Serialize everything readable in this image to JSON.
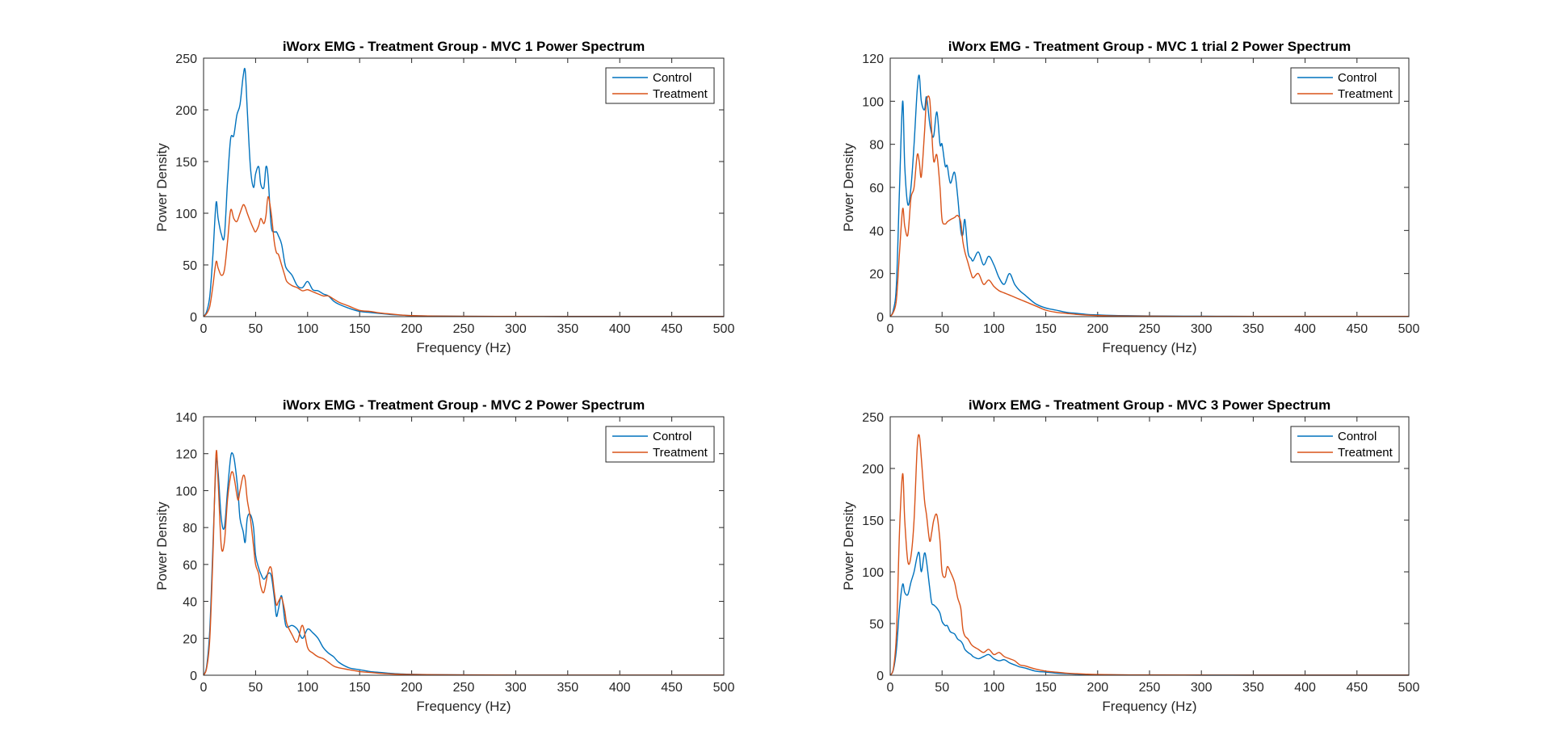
{
  "figure": {
    "background": "#ffffff",
    "colors": {
      "control": "#0072BD",
      "treatment": "#D95319",
      "axis": "#262626"
    }
  },
  "chart_data": [
    {
      "type": "line",
      "title": "iWorx EMG - Treatment Group - MVC 1 Power Spectrum",
      "xlabel": "Frequency (Hz)",
      "ylabel": "Power Density",
      "xlim": [
        0,
        500
      ],
      "ylim": [
        0,
        250
      ],
      "xticks": [
        0,
        50,
        100,
        150,
        200,
        250,
        300,
        350,
        400,
        450,
        500
      ],
      "yticks": [
        0,
        50,
        100,
        150,
        200,
        250
      ],
      "grid": false,
      "legend": "top-right",
      "series": [
        {
          "name": "Control",
          "color": "#0072BD",
          "x": [
            0,
            3,
            6,
            9,
            12,
            14,
            17,
            20,
            23,
            26,
            29,
            32,
            35,
            38,
            40,
            42,
            45,
            48,
            50,
            53,
            55,
            58,
            60,
            62,
            65,
            68,
            70,
            72,
            75,
            78,
            80,
            85,
            90,
            95,
            100,
            105,
            110,
            115,
            120,
            125,
            130,
            140,
            150,
            160,
            170,
            180,
            190,
            200,
            220,
            250,
            300,
            350,
            400,
            450,
            500
          ],
          "y": [
            0,
            5,
            20,
            60,
            110,
            95,
            80,
            78,
            130,
            172,
            175,
            195,
            205,
            232,
            238,
            200,
            145,
            125,
            138,
            145,
            128,
            125,
            145,
            135,
            88,
            82,
            82,
            78,
            70,
            52,
            46,
            40,
            30,
            28,
            34,
            26,
            25,
            22,
            20,
            15,
            12,
            8,
            5,
            4,
            3,
            2,
            1.5,
            1,
            0.5,
            0.3,
            0.2,
            0.1,
            0.1,
            0.1,
            0.1
          ]
        },
        {
          "name": "Treatment",
          "color": "#D95319",
          "x": [
            0,
            3,
            6,
            9,
            12,
            14,
            17,
            20,
            23,
            26,
            29,
            32,
            35,
            38,
            40,
            42,
            45,
            48,
            50,
            53,
            55,
            58,
            60,
            62,
            65,
            68,
            70,
            72,
            75,
            78,
            80,
            85,
            90,
            95,
            100,
            105,
            110,
            115,
            120,
            125,
            130,
            140,
            150,
            160,
            170,
            180,
            190,
            200,
            220,
            250,
            300,
            350,
            400,
            450,
            500
          ],
          "y": [
            0,
            3,
            10,
            30,
            53,
            47,
            40,
            45,
            72,
            103,
            95,
            92,
            100,
            108,
            106,
            100,
            92,
            85,
            82,
            88,
            95,
            90,
            98,
            116,
            100,
            72,
            62,
            60,
            50,
            40,
            34,
            30,
            28,
            25,
            26,
            24,
            22,
            20,
            20,
            17,
            14,
            10,
            6,
            5,
            3.5,
            2.5,
            1.5,
            1,
            0.5,
            0.3,
            0.2,
            0.1,
            0.1,
            0.1,
            0.1
          ]
        }
      ]
    },
    {
      "type": "line",
      "title": "iWorx EMG - Treatment Group - MVC 1 trial 2 Power Spectrum",
      "xlabel": "Frequency (Hz)",
      "ylabel": "Power Density",
      "xlim": [
        0,
        500
      ],
      "ylim": [
        0,
        120
      ],
      "xticks": [
        0,
        50,
        100,
        150,
        200,
        250,
        300,
        350,
        400,
        450,
        500
      ],
      "yticks": [
        0,
        20,
        40,
        60,
        80,
        100,
        120
      ],
      "grid": false,
      "legend": "top-right",
      "series": [
        {
          "name": "Control",
          "color": "#0072BD",
          "x": [
            0,
            3,
            6,
            9,
            12,
            14,
            17,
            20,
            23,
            26,
            28,
            30,
            33,
            35,
            38,
            40,
            42,
            45,
            48,
            50,
            53,
            55,
            58,
            62,
            65,
            68,
            70,
            72,
            75,
            78,
            80,
            85,
            90,
            95,
            100,
            105,
            110,
            115,
            120,
            125,
            130,
            140,
            150,
            160,
            170,
            180,
            190,
            200,
            220,
            250,
            300,
            350,
            400,
            450,
            500
          ],
          "y": [
            0,
            3,
            15,
            60,
            100,
            70,
            52,
            60,
            80,
            105,
            112,
            100,
            96,
            102,
            90,
            85,
            84,
            95,
            80,
            80,
            70,
            70,
            62,
            67,
            56,
            40,
            38,
            45,
            30,
            27,
            26,
            30,
            24,
            28,
            24,
            18,
            15,
            20,
            15,
            12,
            10,
            6,
            4,
            3,
            2,
            1.5,
            1,
            0.8,
            0.5,
            0.3,
            0.2,
            0.1,
            0.1,
            0.1,
            0.1
          ]
        },
        {
          "name": "Treatment",
          "color": "#D95319",
          "x": [
            0,
            3,
            6,
            9,
            12,
            14,
            17,
            20,
            23,
            26,
            28,
            30,
            33,
            35,
            38,
            40,
            42,
            45,
            48,
            50,
            53,
            55,
            58,
            62,
            65,
            68,
            70,
            72,
            75,
            78,
            80,
            85,
            90,
            95,
            100,
            105,
            110,
            115,
            120,
            125,
            130,
            140,
            150,
            160,
            170,
            180,
            190,
            200,
            220,
            250,
            300,
            350,
            400,
            450,
            500
          ],
          "y": [
            0,
            2,
            8,
            30,
            50,
            42,
            38,
            55,
            60,
            75,
            72,
            65,
            85,
            100,
            101,
            86,
            72,
            75,
            60,
            45,
            43,
            44,
            45,
            46,
            47,
            44,
            35,
            30,
            25,
            20,
            18,
            20,
            15,
            17,
            14,
            12,
            11,
            10,
            9,
            8,
            7,
            5,
            3,
            2,
            1.5,
            1,
            0.7,
            0.5,
            0.3,
            0.2,
            0.1,
            0.1,
            0.1,
            0.1,
            0.1
          ]
        }
      ]
    },
    {
      "type": "line",
      "title": "iWorx EMG - Treatment Group - MVC 2 Power Spectrum",
      "xlabel": "Frequency (Hz)",
      "ylabel": "Power Density",
      "xlim": [
        0,
        500
      ],
      "ylim": [
        0,
        140
      ],
      "xticks": [
        0,
        50,
        100,
        150,
        200,
        250,
        300,
        350,
        400,
        450,
        500
      ],
      "yticks": [
        0,
        20,
        40,
        60,
        80,
        100,
        120,
        140
      ],
      "grid": false,
      "legend": "top-right",
      "series": [
        {
          "name": "Control",
          "color": "#0072BD",
          "x": [
            0,
            3,
            6,
            9,
            12,
            14,
            17,
            20,
            23,
            26,
            28,
            30,
            33,
            35,
            38,
            40,
            42,
            45,
            48,
            50,
            53,
            55,
            58,
            62,
            65,
            68,
            70,
            72,
            75,
            78,
            80,
            85,
            90,
            95,
            100,
            105,
            110,
            115,
            120,
            125,
            130,
            140,
            150,
            160,
            170,
            180,
            190,
            200,
            220,
            250,
            300,
            350,
            400,
            450,
            500
          ],
          "y": [
            0,
            5,
            25,
            70,
            115,
            110,
            85,
            80,
            100,
            118,
            120,
            115,
            100,
            85,
            78,
            72,
            85,
            87,
            80,
            65,
            58,
            55,
            52,
            55,
            54,
            42,
            32,
            36,
            43,
            30,
            26,
            27,
            25,
            20,
            25,
            23,
            20,
            15,
            12,
            10,
            7,
            4,
            3,
            2,
            1.5,
            1,
            0.7,
            0.5,
            0.3,
            0.2,
            0.1,
            0.1,
            0.1,
            0.1,
            0.1
          ]
        },
        {
          "name": "Treatment",
          "color": "#D95319",
          "x": [
            0,
            3,
            6,
            9,
            12,
            14,
            17,
            20,
            23,
            26,
            28,
            30,
            33,
            35,
            38,
            40,
            42,
            45,
            48,
            50,
            53,
            55,
            58,
            62,
            65,
            68,
            70,
            72,
            75,
            78,
            80,
            85,
            90,
            95,
            100,
            105,
            110,
            115,
            120,
            125,
            130,
            140,
            150,
            160,
            170,
            180,
            190,
            200,
            220,
            250,
            300,
            350,
            400,
            450,
            500
          ],
          "y": [
            0,
            4,
            20,
            65,
            120,
            105,
            70,
            72,
            95,
            108,
            110,
            105,
            95,
            100,
            108,
            106,
            95,
            85,
            70,
            60,
            55,
            48,
            45,
            56,
            58,
            45,
            38,
            40,
            42,
            35,
            28,
            22,
            18,
            27,
            15,
            12,
            10,
            9,
            7,
            5,
            4,
            3,
            2,
            1.5,
            1,
            0.7,
            0.5,
            0.4,
            0.3,
            0.2,
            0.1,
            0.1,
            0.1,
            0.1,
            0.1
          ]
        }
      ]
    },
    {
      "type": "line",
      "title": "iWorx EMG - Treatment Group - MVC 3 Power Spectrum",
      "xlabel": "Frequency (Hz)",
      "ylabel": "Power Density",
      "xlim": [
        0,
        500
      ],
      "ylim": [
        0,
        250
      ],
      "xticks": [
        0,
        50,
        100,
        150,
        200,
        250,
        300,
        350,
        400,
        450,
        500
      ],
      "yticks": [
        0,
        50,
        100,
        150,
        200,
        250
      ],
      "grid": false,
      "legend": "top-right",
      "series": [
        {
          "name": "Control",
          "color": "#0072BD",
          "x": [
            0,
            3,
            6,
            9,
            12,
            14,
            17,
            20,
            23,
            26,
            28,
            30,
            33,
            35,
            38,
            40,
            42,
            45,
            48,
            50,
            53,
            55,
            58,
            62,
            65,
            68,
            70,
            72,
            75,
            78,
            80,
            85,
            90,
            95,
            100,
            105,
            110,
            115,
            120,
            125,
            130,
            140,
            150,
            160,
            170,
            180,
            190,
            200,
            220,
            250,
            300,
            350,
            400,
            450,
            500
          ],
          "y": [
            0,
            5,
            25,
            65,
            88,
            80,
            78,
            90,
            100,
            115,
            118,
            100,
            118,
            110,
            85,
            70,
            68,
            65,
            60,
            52,
            48,
            48,
            42,
            40,
            35,
            33,
            30,
            25,
            22,
            20,
            18,
            16,
            18,
            20,
            16,
            14,
            15,
            12,
            10,
            8,
            7,
            4,
            3,
            2,
            1.5,
            1,
            0.7,
            0.5,
            0.3,
            0.2,
            0.1,
            0.1,
            0.1,
            0.1,
            0.1
          ]
        },
        {
          "name": "Treatment",
          "color": "#D95319",
          "x": [
            0,
            3,
            6,
            9,
            12,
            14,
            17,
            20,
            23,
            26,
            28,
            30,
            33,
            35,
            38,
            40,
            42,
            45,
            48,
            50,
            53,
            55,
            58,
            62,
            65,
            68,
            70,
            72,
            75,
            78,
            80,
            85,
            90,
            95,
            100,
            105,
            110,
            115,
            120,
            125,
            130,
            140,
            150,
            160,
            170,
            180,
            190,
            200,
            220,
            250,
            300,
            350,
            400,
            450,
            500
          ],
          "y": [
            0,
            6,
            40,
            140,
            195,
            150,
            110,
            115,
            150,
            220,
            232,
            210,
            170,
            155,
            130,
            138,
            150,
            155,
            130,
            100,
            95,
            105,
            100,
            90,
            75,
            65,
            45,
            38,
            35,
            30,
            28,
            25,
            22,
            25,
            20,
            22,
            18,
            16,
            14,
            10,
            9,
            6,
            4,
            3,
            2,
            1.5,
            1,
            0.7,
            0.4,
            0.3,
            0.2,
            0.1,
            0.1,
            0.1,
            0.1
          ]
        }
      ]
    }
  ]
}
